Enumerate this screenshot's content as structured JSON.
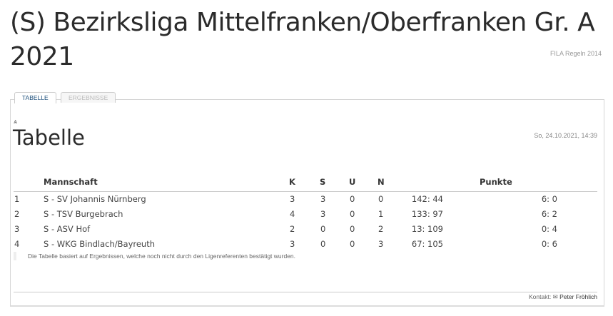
{
  "header": {
    "title": "(S) Bezirksliga Mittelfranken/Oberfranken Gr. A 2021",
    "rules": "FILA Regeln 2014"
  },
  "tabs": [
    {
      "label": "TABELLE",
      "active": true
    },
    {
      "label": "ERGEBNISSE",
      "active": false
    }
  ],
  "section": {
    "title": "Tabelle",
    "date": "So, 24.10.2021, 14:39",
    "icon": "print-icon"
  },
  "table": {
    "headers": {
      "team": "Mannschaft",
      "k": "K",
      "s": "S",
      "u": "U",
      "n": "N",
      "points": "Punkte"
    },
    "rows": [
      {
        "rank": "1",
        "team": "S - SV Johannis Nürnberg",
        "k": "3",
        "s": "3",
        "u": "0",
        "n": "0",
        "goals": "142: 44",
        "points": "6: 0"
      },
      {
        "rank": "2",
        "team": "S - TSV Burgebrach",
        "k": "4",
        "s": "3",
        "u": "0",
        "n": "1",
        "goals": "133: 97",
        "points": "6: 2"
      },
      {
        "rank": "3",
        "team": "S - ASV Hof",
        "k": "2",
        "s": "0",
        "u": "0",
        "n": "2",
        "goals": "13: 109",
        "points": "0: 4"
      },
      {
        "rank": "4",
        "team": "S - WKG Bindlach/Bayreuth",
        "k": "3",
        "s": "0",
        "u": "0",
        "n": "3",
        "goals": "67: 105",
        "points": "0: 6"
      }
    ]
  },
  "note": "Die Tabelle basiert auf Ergebnissen, welche noch nicht durch den Ligenreferenten bestätigt wurden.",
  "footer": {
    "contact_label": "Kontakt:",
    "contact_name": "Peter Fröhlich",
    "icon": "mail-icon"
  }
}
